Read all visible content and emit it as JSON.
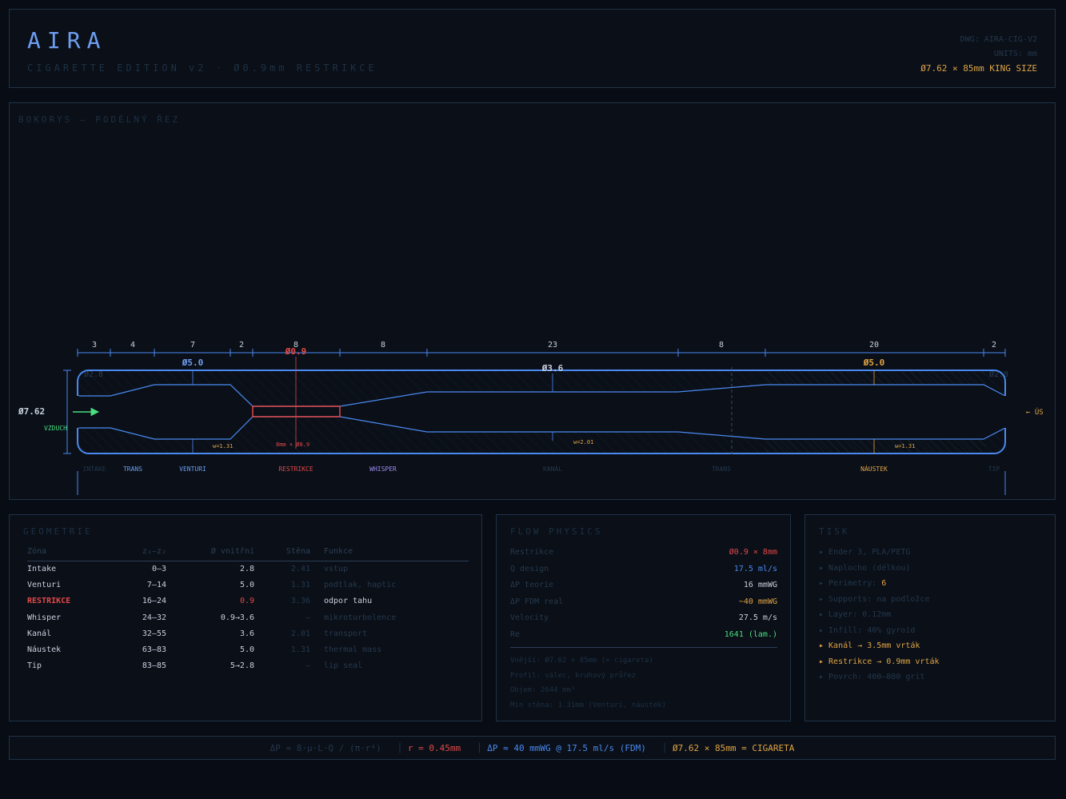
{
  "header": {
    "brand": "AIRA",
    "subtitle": "CIGARETTE EDITION v2 · Ø0.9mm RESTRIKCE",
    "dwg": "DWG: AIRA-CIG-V2",
    "units": "UNITS: mm",
    "size": "Ø7.62 × 85mm KING SIZE"
  },
  "side_view": {
    "title": "BOKORYS — PODÉLNÝ ŘEZ",
    "dims": [
      "3",
      "4",
      "7",
      "2",
      "8",
      "8",
      "23",
      "8",
      "20",
      "2"
    ],
    "diameters": {
      "d_intake": "Ø2.8",
      "d_venturi": "Ø5.0",
      "d_restrikce": "Ø0.9",
      "d_kanal": "Ø3.6",
      "d_naustek": "Ø5.0",
      "d_tip": "Ø2.8"
    },
    "outer_dia": "Ø7.62",
    "air_label": "VZDUCH",
    "mouth_label": "← ÚS",
    "walls": {
      "w_venturi": "w=1.31",
      "w_kanal": "w=2.01",
      "w_naustek": "w=1.31"
    },
    "restr_label": "8mm × Ø0.9",
    "zones": [
      "INTAKE",
      "TRANS",
      "VENTURI",
      "RESTRIKCE",
      "WHISPER",
      "KANÁL",
      "TRANS",
      "NÁUSTEK",
      "TIP"
    ],
    "colors": {
      "outline": "#4a8af0",
      "restrikce": "#e04a4a",
      "naustek": "#e0a445",
      "air": "#4ade80",
      "whisper": "#9d8cf0"
    }
  },
  "geometry": {
    "title": "GEOMETRIE",
    "headers": [
      "Zóna",
      "z₁–z₂",
      "Ø vnitřní",
      "Stěna",
      "Funkce"
    ],
    "rows": [
      {
        "zona": "Intake",
        "z": "0–3",
        "d": "2.8",
        "w": "2.41",
        "f": "vstup"
      },
      {
        "zona": "Venturi",
        "z": "7–14",
        "d": "5.0",
        "w": "1.31",
        "f": "podtlak, haptic"
      },
      {
        "zona": "RESTRIKCE",
        "z": "16–24",
        "d": "0.9",
        "w": "3.36",
        "f": "odpor tahu"
      },
      {
        "zona": "Whisper",
        "z": "24–32",
        "d": "0.9→3.6",
        "w": "—",
        "f": "mikroturbolence"
      },
      {
        "zona": "Kanál",
        "z": "32–55",
        "d": "3.6",
        "w": "2.01",
        "f": "transport"
      },
      {
        "zona": "Náustek",
        "z": "63–83",
        "d": "5.0",
        "w": "1.31",
        "f": "thermal mass"
      },
      {
        "zona": "Tip",
        "z": "83–85",
        "d": "5→2.8",
        "w": "—",
        "f": "lip seal"
      }
    ]
  },
  "flow": {
    "title": "FLOW PHYSICS",
    "rows": [
      {
        "k": "Restrikce",
        "v": "Ø0.9 × 8mm",
        "c": "#e04a4a"
      },
      {
        "k": "Q design",
        "v": "17.5 ml/s",
        "c": "#4a8af0"
      },
      {
        "k": "ΔP teorie",
        "v": "16 mmWG",
        "c": "#c8d0dc"
      },
      {
        "k": "ΔP FDM real",
        "v": "~40 mmWG",
        "c": "#e0a445"
      },
      {
        "k": "Velocity",
        "v": "27.5 m/s",
        "c": "#c8d0dc"
      },
      {
        "k": "Re",
        "v": "1641 (lam.)",
        "c": "#4ade80"
      }
    ],
    "notes": [
      "Vnější: Ø7.62 × 85mm (= cigareta)",
      "Profil: válec, kruhový průřez",
      "Objem: 2644 mm³",
      "Min stěna: 1.31mm (Venturi, náustek)"
    ]
  },
  "tisk": {
    "title": "TISK",
    "items": [
      {
        "t": "▸ Ender 3, PLA/PETG",
        "hl": false
      },
      {
        "t": "▸ Naplocho (délkou)",
        "hl": false
      },
      {
        "t": "▸ Perimetry: ",
        "extra": "6",
        "hl": false
      },
      {
        "t": "▸ Supports: na podložce",
        "hl": false
      },
      {
        "t": "▸ Layer: 0.12mm",
        "hl": false
      },
      {
        "t": "▸ Infill: 40% gyroid",
        "hl": false
      },
      {
        "t": "▸ Kanál → 3.5mm vrták",
        "hl": true
      },
      {
        "t": "▸ Restrikce → 0.9mm vrták",
        "hl": true
      },
      {
        "t": "▸ Povrch: 400–800 grit",
        "hl": false
      }
    ]
  },
  "footer": {
    "formula": "ΔP = 8·μ·L·Q / (π·r⁴)",
    "sep": "│",
    "radius": "r = 0.45mm",
    "dp": "ΔP ≈ 40 mmWG @ 17.5 ml/s (FDM)",
    "size": "Ø7.62 × 85mm = CIGARETA"
  }
}
